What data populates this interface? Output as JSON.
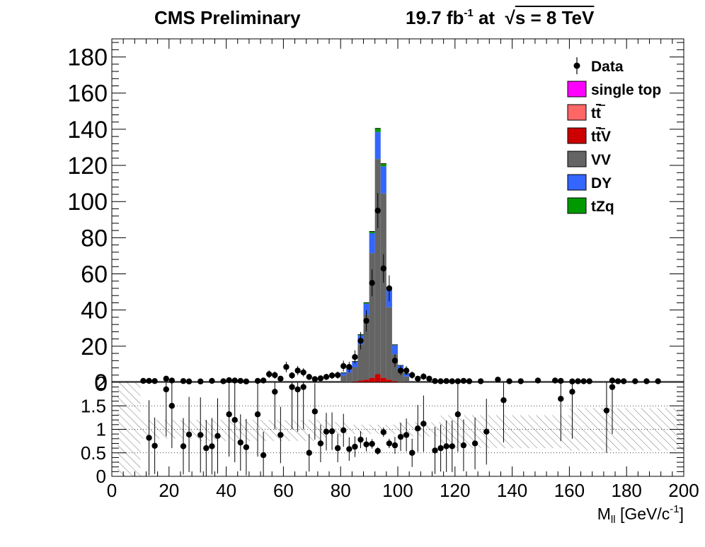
{
  "header": {
    "experiment": "CMS Preliminary",
    "lumi_value": "19.7 fb",
    "lumi_exp": "-1",
    "lumi_at": "at",
    "energy": "s = 8 TeV"
  },
  "chart_data": [
    {
      "type": "bar",
      "panel": "main",
      "stacked": true,
      "xlim": [
        0,
        200
      ],
      "ylim": [
        0,
        190
      ],
      "yticks": [
        0,
        20,
        40,
        60,
        80,
        100,
        120,
        140,
        160,
        180
      ],
      "bin_width": 2,
      "legend": {
        "position": "top-right",
        "entries": [
          {
            "label": "Data",
            "kind": "marker"
          },
          {
            "label": "single top",
            "color": "#ff00ff",
            "kind": "box"
          },
          {
            "label": "tt",
            "label_overline": "t",
            "color": "#ff6666",
            "kind": "box"
          },
          {
            "label": "ttV",
            "label_overline": "t",
            "color": "#cc0000",
            "kind": "box"
          },
          {
            "label": "VV",
            "color": "#646464",
            "kind": "box"
          },
          {
            "label": "DY",
            "color": "#3366ff",
            "kind": "box"
          },
          {
            "label": "tZq",
            "color": "#009900",
            "kind": "box"
          }
        ]
      },
      "stack_bins": [
        {
          "x": 84,
          "ttV": 0.4,
          "VV": 8,
          "DY": 3,
          "tZq": 0.2
        },
        {
          "x": 86,
          "ttV": 1,
          "VV": 20,
          "DY": 5,
          "tZq": 0.4
        },
        {
          "x": 88,
          "ttV": 1.5,
          "VV": 36,
          "DY": 6,
          "tZq": 0.6
        },
        {
          "x": 90,
          "ttV": 2.5,
          "VV": 69,
          "DY": 11,
          "tZq": 1
        },
        {
          "x": 92,
          "ttV": 4.5,
          "VV": 119,
          "DY": 15,
          "tZq": 2
        },
        {
          "x": 94,
          "ttV": 2.5,
          "VV": 102,
          "DY": 15,
          "tZq": 1.5
        },
        {
          "x": 96,
          "ttV": 1.5,
          "VV": 40,
          "DY": 10,
          "tZq": 0.6
        },
        {
          "x": 98,
          "ttV": 0.6,
          "VV": 15,
          "DY": 5,
          "tZq": 0.2
        },
        {
          "x": 100,
          "ttV": 0.3,
          "VV": 6,
          "DY": 3,
          "tZq": 0.1
        },
        {
          "x": 102,
          "ttV": 0.2,
          "VV": 3,
          "DY": 1.5,
          "tZq": 0.1
        },
        {
          "x": 80,
          "ttV": 0.2,
          "VV": 3.5,
          "DY": 1.5,
          "tZq": 0.1
        },
        {
          "x": 82,
          "ttV": 0.3,
          "VV": 5,
          "DY": 2,
          "tZq": 0.1
        }
      ],
      "data_points": [
        {
          "x": 11,
          "y": 0.8,
          "err": 1.1
        },
        {
          "x": 13,
          "y": 0.8,
          "err": 1.1
        },
        {
          "x": 15,
          "y": 0.7,
          "err": 1.1
        },
        {
          "x": 19,
          "y": 2.0,
          "err": 1.6
        },
        {
          "x": 21,
          "y": 1.0,
          "err": 1.2
        },
        {
          "x": 25,
          "y": 0.7,
          "err": 1.1
        },
        {
          "x": 27,
          "y": 0.5,
          "err": 1.0
        },
        {
          "x": 31,
          "y": 0.5,
          "err": 1.0
        },
        {
          "x": 35,
          "y": 0.8,
          "err": 1.1
        },
        {
          "x": 39,
          "y": 0.6,
          "err": 1.0
        },
        {
          "x": 41,
          "y": 1.2,
          "err": 1.2
        },
        {
          "x": 43,
          "y": 1.0,
          "err": 1.2
        },
        {
          "x": 45,
          "y": 0.8,
          "err": 1.1
        },
        {
          "x": 47,
          "y": 0.5,
          "err": 1.0
        },
        {
          "x": 51,
          "y": 0.8,
          "err": 1.1
        },
        {
          "x": 53,
          "y": 1.0,
          "err": 1.2
        },
        {
          "x": 55,
          "y": 4.5,
          "err": 2.1
        },
        {
          "x": 57,
          "y": 4.0,
          "err": 2.0
        },
        {
          "x": 59,
          "y": 2.0,
          "err": 1.4
        },
        {
          "x": 61,
          "y": 8.5,
          "err": 2.9
        },
        {
          "x": 63,
          "y": 3.8,
          "err": 1.9
        },
        {
          "x": 65,
          "y": 6.5,
          "err": 2.5
        },
        {
          "x": 67,
          "y": 5.5,
          "err": 2.3
        },
        {
          "x": 69,
          "y": 3.0,
          "err": 1.7
        },
        {
          "x": 71,
          "y": 1.8,
          "err": 1.4
        },
        {
          "x": 73,
          "y": 2.2,
          "err": 1.5
        },
        {
          "x": 75,
          "y": 3.0,
          "err": 1.7
        },
        {
          "x": 77,
          "y": 3.8,
          "err": 1.9
        },
        {
          "x": 79,
          "y": 4.0,
          "err": 2.0
        },
        {
          "x": 81,
          "y": 9.0,
          "err": 3.0
        },
        {
          "x": 83,
          "y": 8.5,
          "err": 2.9
        },
        {
          "x": 85,
          "y": 14,
          "err": 3.7
        },
        {
          "x": 87,
          "y": 23,
          "err": 4.8
        },
        {
          "x": 89,
          "y": 34,
          "err": 5.8
        },
        {
          "x": 91,
          "y": 55,
          "err": 7.4
        },
        {
          "x": 93,
          "y": 95,
          "err": 9.7
        },
        {
          "x": 95,
          "y": 63,
          "err": 7.9
        },
        {
          "x": 97,
          "y": 52,
          "err": 7.2
        },
        {
          "x": 99,
          "y": 12,
          "err": 3.5
        },
        {
          "x": 101,
          "y": 6.5,
          "err": 2.5
        },
        {
          "x": 103,
          "y": 6.5,
          "err": 2.5
        },
        {
          "x": 105,
          "y": 4.0,
          "err": 2.0
        },
        {
          "x": 107,
          "y": 2.0,
          "err": 1.4
        },
        {
          "x": 109,
          "y": 3.2,
          "err": 1.8
        },
        {
          "x": 111,
          "y": 2.0,
          "err": 1.4
        },
        {
          "x": 113,
          "y": 0.7,
          "err": 1.1
        },
        {
          "x": 115,
          "y": 0.6,
          "err": 1.0
        },
        {
          "x": 117,
          "y": 0.7,
          "err": 1.1
        },
        {
          "x": 119,
          "y": 0.6,
          "err": 1.0
        },
        {
          "x": 121,
          "y": 0.6,
          "err": 1.0
        },
        {
          "x": 123,
          "y": 0.8,
          "err": 1.1
        },
        {
          "x": 125,
          "y": 0.6,
          "err": 1.0
        },
        {
          "x": 129,
          "y": 0.6,
          "err": 1.0
        },
        {
          "x": 135,
          "y": 1.5,
          "err": 1.2
        },
        {
          "x": 139,
          "y": 0.6,
          "err": 1.0
        },
        {
          "x": 143,
          "y": 0.6,
          "err": 1.0
        },
        {
          "x": 149,
          "y": 1.0,
          "err": 1.2
        },
        {
          "x": 155,
          "y": 1.0,
          "err": 1.2
        },
        {
          "x": 157,
          "y": 0.8,
          "err": 1.1
        },
        {
          "x": 161,
          "y": 0.5,
          "err": 1.0
        },
        {
          "x": 163,
          "y": 0.6,
          "err": 1.0
        },
        {
          "x": 165,
          "y": 0.6,
          "err": 1.0
        },
        {
          "x": 167,
          "y": 0.6,
          "err": 1.0
        },
        {
          "x": 175,
          "y": 1.0,
          "err": 1.2
        },
        {
          "x": 177,
          "y": 0.6,
          "err": 1.0
        },
        {
          "x": 179,
          "y": 0.6,
          "err": 1.0
        },
        {
          "x": 183,
          "y": 0.6,
          "err": 1.0
        },
        {
          "x": 187,
          "y": 0.6,
          "err": 1.0
        },
        {
          "x": 191,
          "y": 0.6,
          "err": 1.0
        }
      ],
      "background_level": 0.8
    },
    {
      "type": "scatter",
      "panel": "ratio",
      "xlim": [
        0,
        200
      ],
      "ylim": [
        0,
        2
      ],
      "yticks": [
        0,
        0.5,
        1,
        1.5
      ],
      "yticklabels": [
        "0",
        "0.5",
        "1",
        "1.5"
      ],
      "top_label": "2",
      "xticks": [
        0,
        20,
        40,
        60,
        80,
        100,
        120,
        140,
        160,
        180,
        200
      ],
      "xlabel": "M",
      "xlabel_sub": "ll",
      "xlabel_unit": " [GeV/c",
      "xlabel_unit_sup": "-1",
      "xlabel_close": "]",
      "dotted_lines": [
        0.5,
        1,
        1.5
      ],
      "uncertainty_band": [
        {
          "x": [
            2,
            10
          ],
          "lo": 0,
          "hi": 2
        },
        {
          "x": [
            10,
            30
          ],
          "lo": 0.8,
          "hi": 1.2
        },
        {
          "x": [
            30,
            75
          ],
          "lo": 0.75,
          "hi": 1.2
        },
        {
          "x": [
            75,
            82
          ],
          "lo": 0.85,
          "hi": 1.15
        },
        {
          "x": [
            82,
            100
          ],
          "lo": 0.9,
          "hi": 1.1
        },
        {
          "x": [
            100,
            115
          ],
          "lo": 0.85,
          "hi": 1.15
        },
        {
          "x": [
            115,
            160
          ],
          "lo": 0.6,
          "hi": 1.3
        },
        {
          "x": [
            160,
            200
          ],
          "lo": 0.55,
          "hi": 1.45
        }
      ],
      "points": [
        {
          "x": 13,
          "y": 0.82,
          "err": 0.8
        },
        {
          "x": 15,
          "y": 0.65,
          "err": 0.6
        },
        {
          "x": 19,
          "y": 1.85,
          "err": 1.0
        },
        {
          "x": 21,
          "y": 1.5,
          "err": 0.9
        },
        {
          "x": 25,
          "y": 0.64,
          "err": 0.6
        },
        {
          "x": 27,
          "y": 0.89,
          "err": 0.8
        },
        {
          "x": 31,
          "y": 0.88,
          "err": 0.8
        },
        {
          "x": 33,
          "y": 0.6,
          "err": 0.6
        },
        {
          "x": 35,
          "y": 0.64,
          "err": 0.6
        },
        {
          "x": 37,
          "y": 0.86,
          "err": 0.8
        },
        {
          "x": 41,
          "y": 1.32,
          "err": 0.9
        },
        {
          "x": 43,
          "y": 1.2,
          "err": 0.9
        },
        {
          "x": 45,
          "y": 0.72,
          "err": 0.6
        },
        {
          "x": 47,
          "y": 0.62,
          "err": 0.6
        },
        {
          "x": 51,
          "y": 1.32,
          "err": 0.9
        },
        {
          "x": 53,
          "y": 0.45,
          "err": 0.5
        },
        {
          "x": 57,
          "y": 1.8,
          "err": 0.8
        },
        {
          "x": 59,
          "y": 0.88,
          "err": 0.6
        },
        {
          "x": 63,
          "y": 1.9,
          "err": 0.9
        },
        {
          "x": 65,
          "y": 1.85,
          "err": 0.9
        },
        {
          "x": 67,
          "y": 1.9,
          "err": 0.9
        },
        {
          "x": 69,
          "y": 0.5,
          "err": 0.4
        },
        {
          "x": 71,
          "y": 1.38,
          "err": 0.6
        },
        {
          "x": 73,
          "y": 0.7,
          "err": 0.4
        },
        {
          "x": 75,
          "y": 0.95,
          "err": 0.4
        },
        {
          "x": 77,
          "y": 0.96,
          "err": 0.4
        },
        {
          "x": 79,
          "y": 0.6,
          "err": 0.3
        },
        {
          "x": 81,
          "y": 0.98,
          "err": 0.35
        },
        {
          "x": 83,
          "y": 0.58,
          "err": 0.25
        },
        {
          "x": 85,
          "y": 0.63,
          "err": 0.22
        },
        {
          "x": 87,
          "y": 0.78,
          "err": 0.18
        },
        {
          "x": 89,
          "y": 0.68,
          "err": 0.15
        },
        {
          "x": 91,
          "y": 0.69,
          "err": 0.1
        },
        {
          "x": 93,
          "y": 0.54,
          "err": 0.08
        },
        {
          "x": 95,
          "y": 0.94,
          "err": 0.1
        },
        {
          "x": 97,
          "y": 0.7,
          "err": 0.1
        },
        {
          "x": 99,
          "y": 0.66,
          "err": 0.18
        },
        {
          "x": 101,
          "y": 0.84,
          "err": 0.3
        },
        {
          "x": 103,
          "y": 0.88,
          "err": 0.35
        },
        {
          "x": 105,
          "y": 0.5,
          "err": 0.3
        },
        {
          "x": 107,
          "y": 1.02,
          "err": 0.5
        },
        {
          "x": 109,
          "y": 1.12,
          "err": 0.6
        },
        {
          "x": 113,
          "y": 0.55,
          "err": 0.5
        },
        {
          "x": 115,
          "y": 0.6,
          "err": 0.5
        },
        {
          "x": 117,
          "y": 0.64,
          "err": 0.55
        },
        {
          "x": 119,
          "y": 0.64,
          "err": 0.55
        },
        {
          "x": 121,
          "y": 1.32,
          "err": 0.8
        },
        {
          "x": 123,
          "y": 0.66,
          "err": 0.55
        },
        {
          "x": 127,
          "y": 0.7,
          "err": 0.55
        },
        {
          "x": 131,
          "y": 0.95,
          "err": 0.7
        },
        {
          "x": 137,
          "y": 1.62,
          "err": 0.9
        },
        {
          "x": 157,
          "y": 1.65,
          "err": 0.9
        },
        {
          "x": 161,
          "y": 1.8,
          "err": 1.0
        },
        {
          "x": 173,
          "y": 1.4,
          "err": 0.9
        },
        {
          "x": 175,
          "y": 1.9,
          "err": 1.0
        }
      ]
    }
  ]
}
